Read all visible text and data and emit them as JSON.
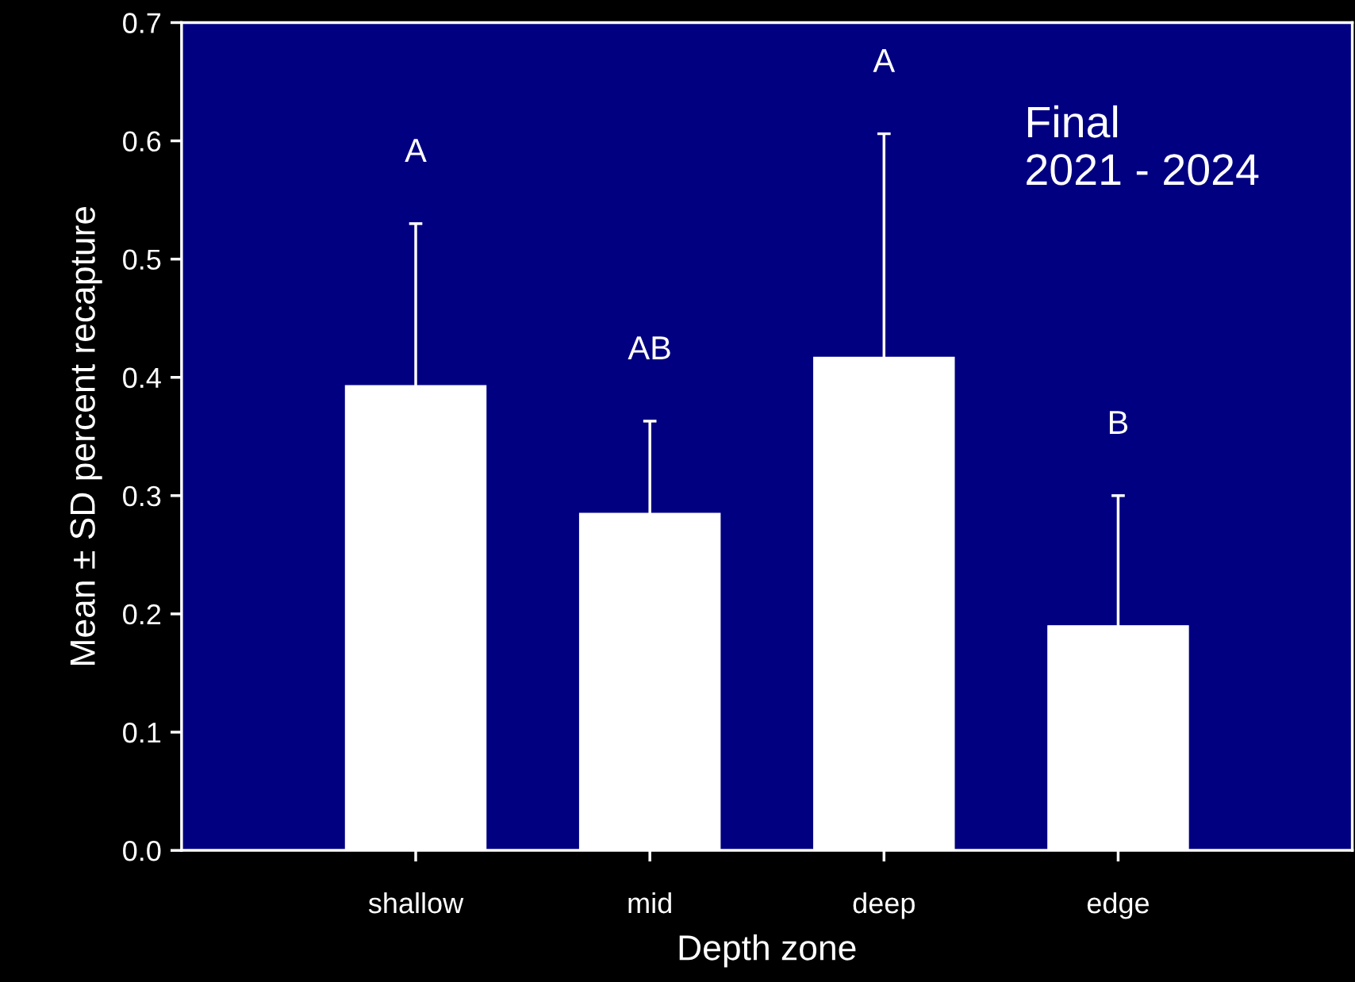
{
  "chart_data": {
    "type": "bar",
    "xlabel": "Depth zone",
    "ylabel": "Mean ± SD percent recapture",
    "categories": [
      "shallow",
      "mid",
      "deep",
      "edge"
    ],
    "values": [
      0.393,
      0.285,
      0.417,
      0.19
    ],
    "errors": [
      0.137,
      0.078,
      0.189,
      0.11
    ],
    "color": "#ffffff",
    "ylim": [
      0,
      0.7
    ],
    "yticks": [
      {
        "value": 0,
        "label": "0.0"
      },
      0.1,
      0.2,
      0.3,
      0.4,
      0.5,
      0.6,
      0.7
    ],
    "grid": false,
    "annotations": [
      "A",
      "AB",
      "A",
      "B",
      "Final\n2021 - 2024"
    ]
  }
}
